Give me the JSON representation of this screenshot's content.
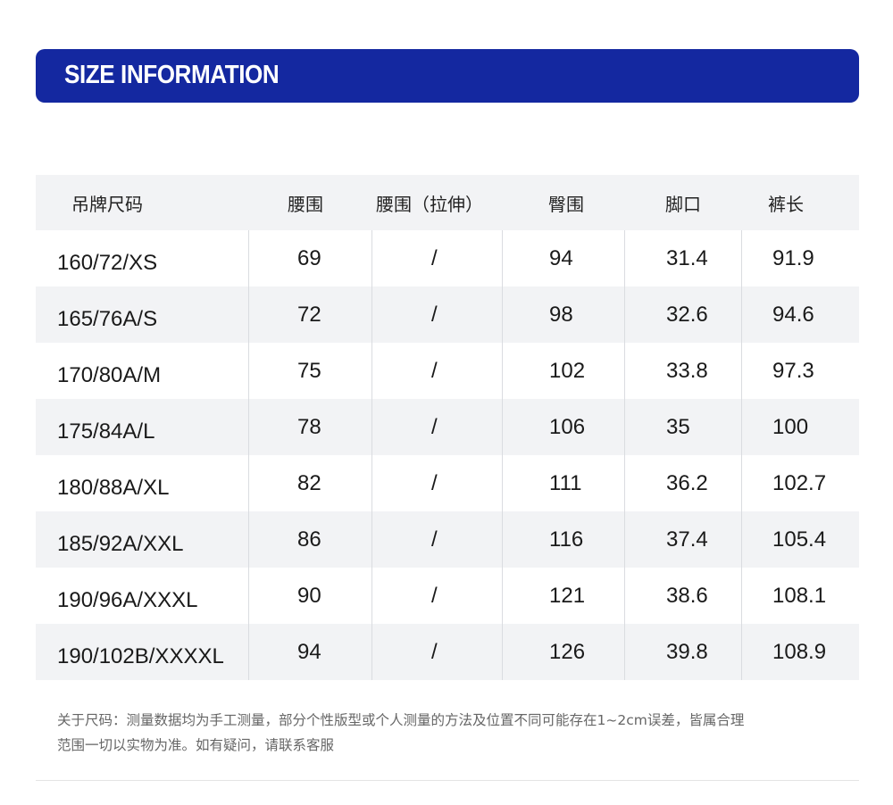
{
  "banner": {
    "title": "SIZE INFORMATION",
    "color": "#1428a0"
  },
  "table": {
    "headers": [
      "吊牌尺码",
      "腰围",
      "腰围（拉伸）",
      "臀围",
      "脚口",
      "裤长"
    ],
    "rows": [
      [
        "160/72/XS",
        "69",
        "/",
        "94",
        "31.4",
        "91.9"
      ],
      [
        "165/76A/S",
        "72",
        "/",
        "98",
        "32.6",
        "94.6"
      ],
      [
        "170/80A/M",
        "75",
        "/",
        "102",
        "33.8",
        "97.3"
      ],
      [
        "175/84A/L",
        "78",
        "/",
        "106",
        "35",
        "100"
      ],
      [
        "180/88A/XL",
        "82",
        "/",
        "111",
        "36.2",
        "102.7"
      ],
      [
        "185/92A/XXL",
        "86",
        "/",
        "116",
        "37.4",
        "105.4"
      ],
      [
        "190/96A/XXXL",
        "90",
        "/",
        "121",
        "38.6",
        "108.1"
      ],
      [
        "190/102B/XXXXL",
        "94",
        "/",
        "126",
        "39.8",
        "108.9"
      ]
    ]
  },
  "note": {
    "line1": "关于尺码：测量数据均为手工测量，部分个性版型或个人测量的方法及位置不同可能存在1~2cm误差，皆属合理",
    "line2": "范围一切以实物为准。如有疑问，请联系客服"
  }
}
